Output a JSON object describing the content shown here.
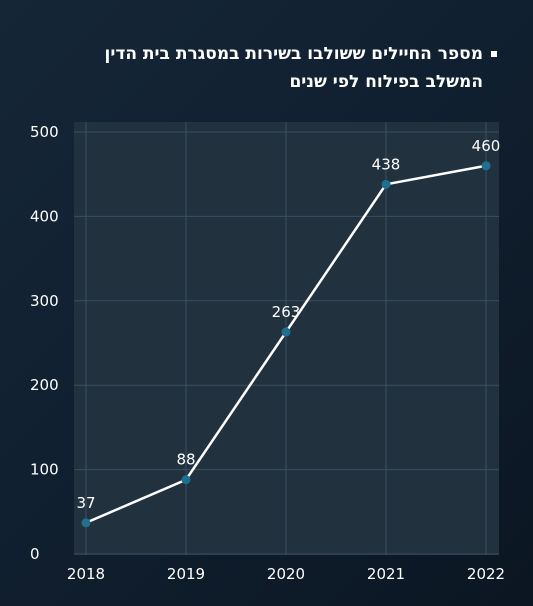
{
  "chart_data": {
    "type": "line",
    "title": "מספר החיילים ששולבו בשירות במסגרת בית הדין המשלב בפילוח לפי שנים",
    "x": [
      "2018",
      "2019",
      "2020",
      "2021",
      "2022"
    ],
    "series": [
      {
        "values": [
          37,
          88,
          263,
          438,
          460
        ]
      }
    ],
    "data_labels": [
      "37",
      "88",
      "263",
      "438",
      "460"
    ],
    "yticks": [
      0,
      100,
      200,
      300,
      400,
      500
    ],
    "ytick_labels": [
      "0",
      "100",
      "200",
      "300",
      "400",
      "500"
    ],
    "ylim": [
      0,
      500
    ],
    "xlabel": "",
    "ylabel": "",
    "grid": true,
    "legend": "none",
    "colors": {
      "line": "#ffffff",
      "marker": "#1f6f8f",
      "grid": "#3b4f60",
      "plot_bg": "#22313e"
    }
  }
}
